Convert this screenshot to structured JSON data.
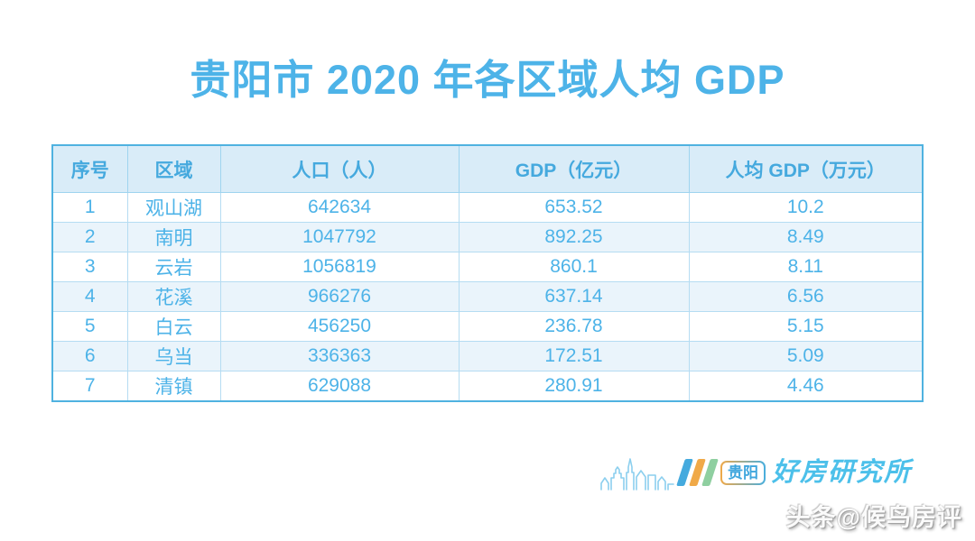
{
  "title": "贵阳市 2020 年各区域人均 GDP",
  "chart_data": {
    "type": "table",
    "title": "贵阳市 2020 年各区域人均 GDP",
    "columns": [
      "序号",
      "区域",
      "人口（人）",
      "GDP（亿元）",
      "人均 GDP（万元）"
    ],
    "rows": [
      [
        "1",
        "观山湖",
        "642634",
        "653.52",
        "10.2"
      ],
      [
        "2",
        "南明",
        "1047792",
        "892.25",
        "8.49"
      ],
      [
        "3",
        "云岩",
        "1056819",
        "860.1",
        "8.11"
      ],
      [
        "4",
        "花溪",
        "966276",
        "637.14",
        "6.56"
      ],
      [
        "5",
        "白云",
        "456250",
        "236.78",
        "5.15"
      ],
      [
        "6",
        "乌当",
        "336363",
        "172.51",
        "5.09"
      ],
      [
        "7",
        "清镇",
        "629088",
        "280.91",
        "4.46"
      ]
    ]
  },
  "footer": {
    "logo": {
      "skyline_icon": "city-skyline-icon",
      "stripes_colors": [
        "#45aade",
        "#f0a948",
        "#8fcfa0"
      ],
      "badge_label": "贵阳",
      "brand_text": "好房研究所"
    },
    "watermark": "头条@候鸟房评"
  },
  "colors": {
    "title_text": "#4db3e8",
    "header_bg": "#d9ecf8",
    "header_text": "#45a9de",
    "cell_text": "#4db3e8",
    "row_alt_bg": "#eaf4fb",
    "border_inner": "#b5dcf2",
    "border_outer": "#4fb2e0",
    "brand_blue": "#4cc0ea",
    "badge_border_orange": "#f0a948",
    "badge_border_blue": "#48aede",
    "watermark_shadow_gray": "#9b9b9b"
  }
}
